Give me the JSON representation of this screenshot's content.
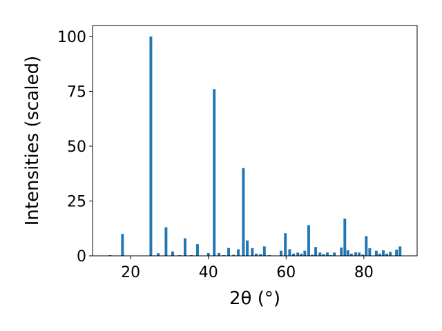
{
  "chart_data": {
    "type": "bar",
    "xlabel": "2θ (°)",
    "ylabel": "Intensities (scaled)",
    "color": "#1f77b4",
    "x": [
      14.7,
      17.9,
      25.2,
      27.1,
      29.1,
      30.8,
      32.6,
      34.0,
      35.6,
      37.2,
      40.0,
      41.5,
      42.7,
      44.0,
      45.2,
      46.5,
      47.7,
      49.0,
      50.0,
      51.3,
      52.3,
      53.4,
      54.4,
      55.7,
      58.7,
      59.8,
      60.9,
      61.9,
      63.0,
      63.9,
      64.8,
      65.8,
      66.7,
      67.6,
      68.7,
      69.6,
      70.6,
      71.5,
      72.4,
      74.2,
      75.1,
      75.9,
      76.8,
      77.9,
      78.8,
      79.7,
      80.6,
      81.5,
      83.2,
      84.1,
      85.0,
      85.9,
      86.8,
      88.4,
      89.3
    ],
    "values": [
      0.3,
      10,
      100,
      1.2,
      13,
      2,
      0.3,
      8,
      0.3,
      5.3,
      1.3,
      76,
      1.3,
      0.3,
      3.6,
      0.5,
      3,
      40,
      7,
      3.5,
      1,
      0.8,
      4.3,
      0.3,
      2.3,
      10.3,
      3,
      1,
      1.5,
      1,
      2.3,
      14,
      0.5,
      4,
      1.5,
      0.8,
      1.5,
      0.3,
      1.5,
      3.8,
      17,
      2.5,
      1,
      1.6,
      1.5,
      0.6,
      9,
      3.5,
      2.3,
      1,
      2.5,
      1,
      1.8,
      2.8,
      4.3
    ],
    "xlim": [
      10.2,
      93.7
    ],
    "ylim": [
      0,
      105
    ],
    "xticks": [
      20,
      40,
      60,
      80
    ],
    "yticks": [
      0,
      25,
      50,
      75,
      100
    ]
  }
}
